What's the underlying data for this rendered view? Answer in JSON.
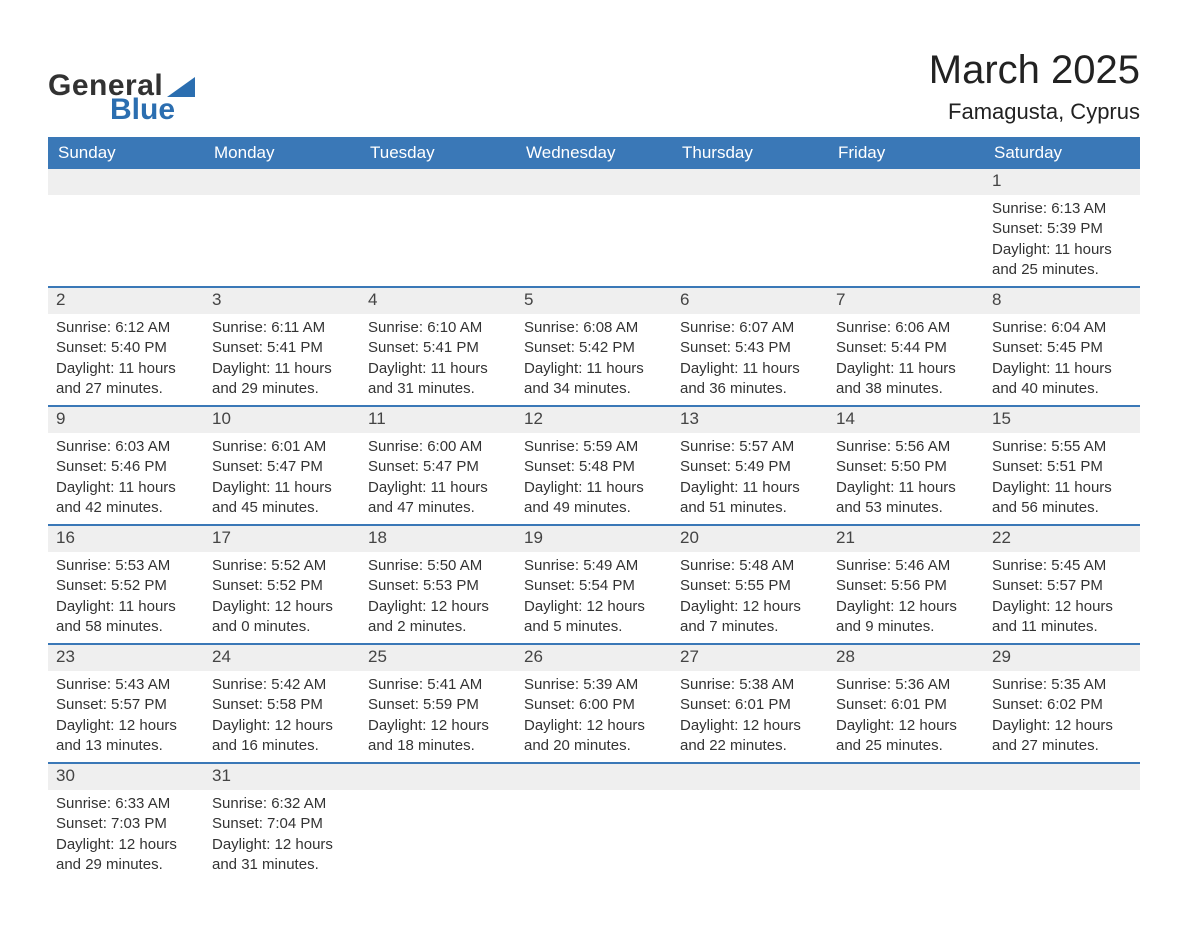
{
  "brand": {
    "word1": "General",
    "word2": "Blue"
  },
  "colors": {
    "header_bg": "#3a78b7",
    "header_text": "#ffffff",
    "row_border": "#3a78b7",
    "daynum_bg": "#efefef",
    "text": "#333333",
    "brand_blue": "#2b6eb0",
    "brand_dark": "#323232"
  },
  "title": "March 2025",
  "location": "Famagusta, Cyprus",
  "weekdays": [
    "Sunday",
    "Monday",
    "Tuesday",
    "Wednesday",
    "Thursday",
    "Friday",
    "Saturday"
  ],
  "weeks": [
    [
      null,
      null,
      null,
      null,
      null,
      null,
      {
        "n": "1",
        "sunrise": "6:13 AM",
        "sunset": "5:39 PM",
        "dl": "11 hours and 25 minutes."
      }
    ],
    [
      {
        "n": "2",
        "sunrise": "6:12 AM",
        "sunset": "5:40 PM",
        "dl": "11 hours and 27 minutes."
      },
      {
        "n": "3",
        "sunrise": "6:11 AM",
        "sunset": "5:41 PM",
        "dl": "11 hours and 29 minutes."
      },
      {
        "n": "4",
        "sunrise": "6:10 AM",
        "sunset": "5:41 PM",
        "dl": "11 hours and 31 minutes."
      },
      {
        "n": "5",
        "sunrise": "6:08 AM",
        "sunset": "5:42 PM",
        "dl": "11 hours and 34 minutes."
      },
      {
        "n": "6",
        "sunrise": "6:07 AM",
        "sunset": "5:43 PM",
        "dl": "11 hours and 36 minutes."
      },
      {
        "n": "7",
        "sunrise": "6:06 AM",
        "sunset": "5:44 PM",
        "dl": "11 hours and 38 minutes."
      },
      {
        "n": "8",
        "sunrise": "6:04 AM",
        "sunset": "5:45 PM",
        "dl": "11 hours and 40 minutes."
      }
    ],
    [
      {
        "n": "9",
        "sunrise": "6:03 AM",
        "sunset": "5:46 PM",
        "dl": "11 hours and 42 minutes."
      },
      {
        "n": "10",
        "sunrise": "6:01 AM",
        "sunset": "5:47 PM",
        "dl": "11 hours and 45 minutes."
      },
      {
        "n": "11",
        "sunrise": "6:00 AM",
        "sunset": "5:47 PM",
        "dl": "11 hours and 47 minutes."
      },
      {
        "n": "12",
        "sunrise": "5:59 AM",
        "sunset": "5:48 PM",
        "dl": "11 hours and 49 minutes."
      },
      {
        "n": "13",
        "sunrise": "5:57 AM",
        "sunset": "5:49 PM",
        "dl": "11 hours and 51 minutes."
      },
      {
        "n": "14",
        "sunrise": "5:56 AM",
        "sunset": "5:50 PM",
        "dl": "11 hours and 53 minutes."
      },
      {
        "n": "15",
        "sunrise": "5:55 AM",
        "sunset": "5:51 PM",
        "dl": "11 hours and 56 minutes."
      }
    ],
    [
      {
        "n": "16",
        "sunrise": "5:53 AM",
        "sunset": "5:52 PM",
        "dl": "11 hours and 58 minutes."
      },
      {
        "n": "17",
        "sunrise": "5:52 AM",
        "sunset": "5:52 PM",
        "dl": "12 hours and 0 minutes."
      },
      {
        "n": "18",
        "sunrise": "5:50 AM",
        "sunset": "5:53 PM",
        "dl": "12 hours and 2 minutes."
      },
      {
        "n": "19",
        "sunrise": "5:49 AM",
        "sunset": "5:54 PM",
        "dl": "12 hours and 5 minutes."
      },
      {
        "n": "20",
        "sunrise": "5:48 AM",
        "sunset": "5:55 PM",
        "dl": "12 hours and 7 minutes."
      },
      {
        "n": "21",
        "sunrise": "5:46 AM",
        "sunset": "5:56 PM",
        "dl": "12 hours and 9 minutes."
      },
      {
        "n": "22",
        "sunrise": "5:45 AM",
        "sunset": "5:57 PM",
        "dl": "12 hours and 11 minutes."
      }
    ],
    [
      {
        "n": "23",
        "sunrise": "5:43 AM",
        "sunset": "5:57 PM",
        "dl": "12 hours and 13 minutes."
      },
      {
        "n": "24",
        "sunrise": "5:42 AM",
        "sunset": "5:58 PM",
        "dl": "12 hours and 16 minutes."
      },
      {
        "n": "25",
        "sunrise": "5:41 AM",
        "sunset": "5:59 PM",
        "dl": "12 hours and 18 minutes."
      },
      {
        "n": "26",
        "sunrise": "5:39 AM",
        "sunset": "6:00 PM",
        "dl": "12 hours and 20 minutes."
      },
      {
        "n": "27",
        "sunrise": "5:38 AM",
        "sunset": "6:01 PM",
        "dl": "12 hours and 22 minutes."
      },
      {
        "n": "28",
        "sunrise": "5:36 AM",
        "sunset": "6:01 PM",
        "dl": "12 hours and 25 minutes."
      },
      {
        "n": "29",
        "sunrise": "5:35 AM",
        "sunset": "6:02 PM",
        "dl": "12 hours and 27 minutes."
      }
    ],
    [
      {
        "n": "30",
        "sunrise": "6:33 AM",
        "sunset": "7:03 PM",
        "dl": "12 hours and 29 minutes."
      },
      {
        "n": "31",
        "sunrise": "6:32 AM",
        "sunset": "7:04 PM",
        "dl": "12 hours and 31 minutes."
      },
      null,
      null,
      null,
      null,
      null
    ]
  ],
  "labels": {
    "sunrise": "Sunrise: ",
    "sunset": "Sunset: ",
    "daylight": "Daylight: "
  }
}
